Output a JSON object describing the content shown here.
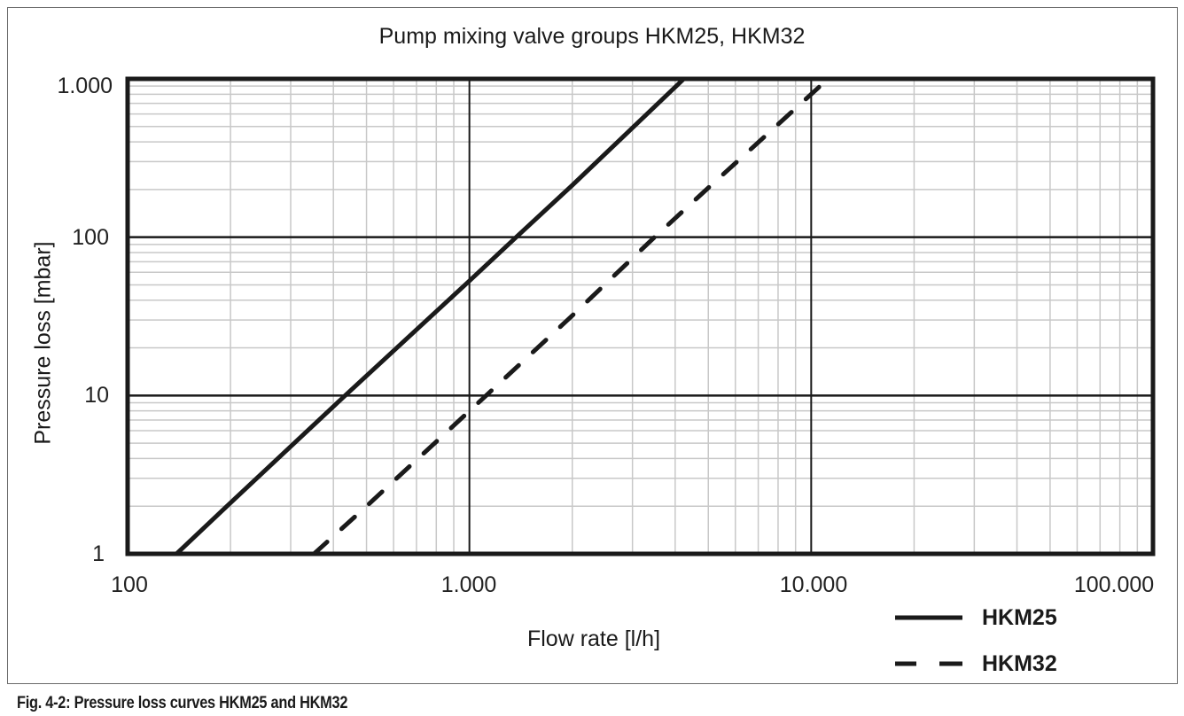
{
  "chart_data": {
    "type": "line",
    "title": "Pump mixing valve groups HKM25, HKM32",
    "xlabel": "Flow rate [l/h]",
    "ylabel": "Pressure loss [mbar]",
    "xscale": "log",
    "yscale": "log",
    "xlim": [
      100,
      100000
    ],
    "ylim": [
      1,
      1000
    ],
    "x_tick_labels": [
      "100",
      "1.000",
      "10.000",
      "100.000"
    ],
    "x_ticks": [
      100,
      1000,
      10000,
      100000
    ],
    "y_tick_labels": [
      "1",
      "10",
      "100",
      "1.000"
    ],
    "y_ticks": [
      1,
      10,
      100,
      1000
    ],
    "grid": true,
    "legend_position": "bottom-right, outside plot",
    "series": [
      {
        "name": "HKM25",
        "style": "solid",
        "x": [
          139,
          200,
          433,
          1000,
          1370,
          2000,
          4240
        ],
        "y": [
          1,
          2.1,
          10,
          53,
          100,
          213,
          1000
        ]
      },
      {
        "name": "HKM32",
        "style": "dashed",
        "x": [
          351,
          500,
          1120,
          2000,
          3480,
          5000,
          10800
        ],
        "y": [
          1,
          2.0,
          10,
          32,
          100,
          205,
          930
        ]
      }
    ]
  },
  "caption": "Fig. 4-2: Pressure loss curves  HKM25 and HKM32",
  "legend": {
    "items": [
      {
        "label": "HKM25",
        "style": "solid"
      },
      {
        "label": "HKM32",
        "style": "dashed"
      }
    ]
  },
  "colors": {
    "line": "#1a1a1a",
    "major_grid": "#1a1a1a",
    "minor_grid": "#c8c8c8",
    "frame": "#6a6a6a"
  }
}
